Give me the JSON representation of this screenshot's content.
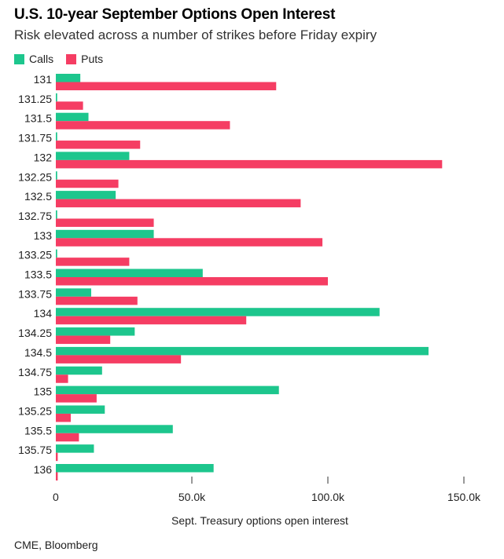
{
  "chart_data": {
    "type": "bar",
    "orientation": "horizontal",
    "title": "U.S. 10-year September Options Open Interest",
    "subtitle": "Risk elevated across a number of strikes before Friday expiry",
    "xlabel": "Sept. Treasury options open interest",
    "ylabel": "",
    "source": "CME, Bloomberg",
    "xlim": [
      0,
      150000
    ],
    "xticks": [
      0,
      50000,
      100000,
      150000
    ],
    "xtick_labels": [
      "0",
      "50.0k",
      "100.0k",
      "150.0k"
    ],
    "categories": [
      "131",
      "131.25",
      "131.5",
      "131.75",
      "132",
      "132.25",
      "132.5",
      "132.75",
      "133",
      "133.25",
      "133.5",
      "133.75",
      "134",
      "134.25",
      "134.5",
      "134.75",
      "135",
      "135.25",
      "135.5",
      "135.75",
      "136"
    ],
    "series": [
      {
        "name": "Calls",
        "color": "#1dc68d",
        "values": [
          9000,
          500,
          12000,
          500,
          27000,
          500,
          22000,
          500,
          36000,
          500,
          54000,
          13000,
          119000,
          29000,
          137000,
          17000,
          82000,
          18000,
          43000,
          14000,
          58000
        ]
      },
      {
        "name": "Puts",
        "color": "#f53d63",
        "values": [
          81000,
          10000,
          64000,
          31000,
          142000,
          23000,
          90000,
          36000,
          98000,
          27000,
          100000,
          30000,
          70000,
          20000,
          46000,
          4500,
          15000,
          5500,
          8500,
          700,
          700
        ]
      }
    ]
  }
}
